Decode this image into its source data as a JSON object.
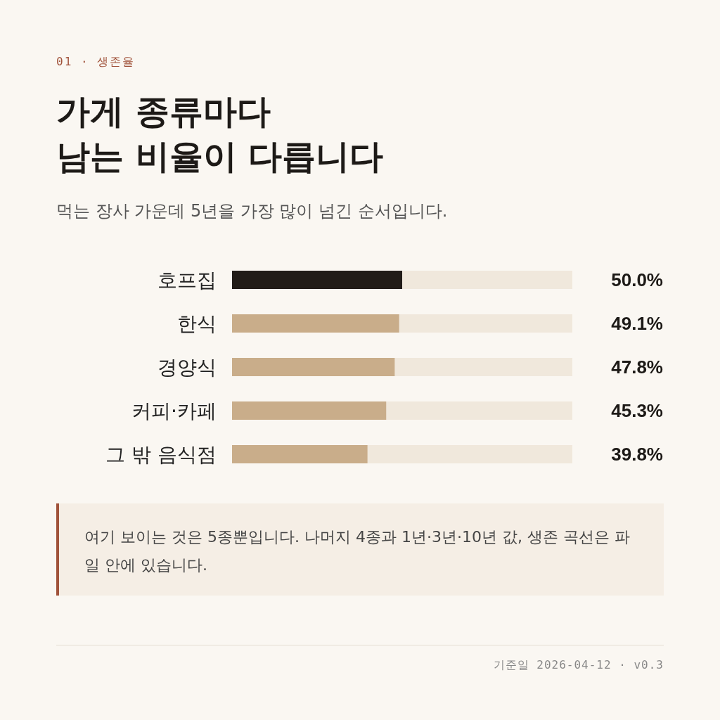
{
  "chart_data": {
    "type": "bar",
    "orientation": "horizontal",
    "title": "가게 종류마다\n남는 비율이 다릅니다",
    "subtitle": "먹는 장사 가운데 5년을 가장 많이 넘긴 순서입니다.",
    "categories": [
      "호프집",
      "한식",
      "경양식",
      "커피·카페",
      "그 밖 음식점"
    ],
    "values": [
      50.0,
      49.1,
      47.8,
      45.3,
      39.8
    ],
    "colors": [
      "#211c19",
      "#c9ad8a",
      "#c9ad8a",
      "#c9ad8a",
      "#c9ad8a"
    ],
    "value_labels": [
      "50.0%",
      "49.1%",
      "47.8%",
      "45.3%",
      "39.8%"
    ],
    "xlim": [
      0,
      100
    ],
    "tick_labels": "y",
    "annotations": [
      "01 · 생존율",
      "여기 보이는 것은 5종뿐입니다. 나머지 4종과 1년·3년·10년 값, 생존 곡선은 파일 안에 있습니다.",
      "기준일 2026-04-12 · v0.3"
    ]
  }
}
